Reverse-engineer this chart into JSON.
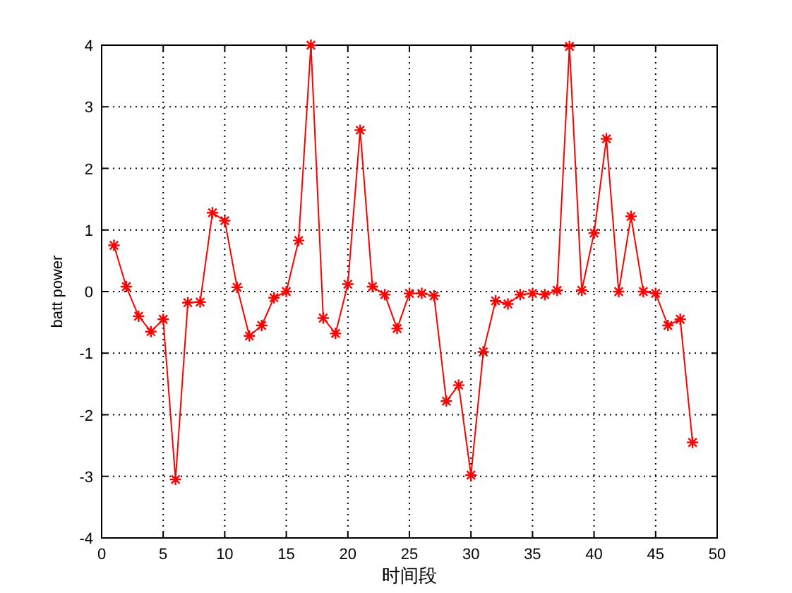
{
  "chart_data": {
    "type": "line",
    "xlabel": "时间段",
    "ylabel": "batt power",
    "x": [
      1,
      2,
      3,
      4,
      5,
      6,
      7,
      8,
      9,
      10,
      11,
      12,
      13,
      14,
      15,
      16,
      17,
      18,
      19,
      20,
      21,
      22,
      23,
      24,
      25,
      26,
      27,
      28,
      29,
      30,
      31,
      32,
      33,
      34,
      35,
      36,
      37,
      38,
      39,
      40,
      41,
      42,
      43,
      44,
      45,
      46,
      47,
      48
    ],
    "series": [
      {
        "color": "#ff0000",
        "values": [
          0.75,
          0.08,
          -0.4,
          -0.65,
          -0.45,
          -3.05,
          -0.18,
          -0.17,
          1.28,
          1.15,
          0.07,
          -0.72,
          -0.55,
          -0.1,
          0,
          0.83,
          4,
          -0.43,
          -0.68,
          0.12,
          2.62,
          0.08,
          -0.05,
          -0.6,
          -0.03,
          -0.03,
          -0.07,
          -1.78,
          -1.52,
          -2.98,
          -0.98,
          -0.15,
          -0.2,
          -0.05,
          -0.03,
          -0.05,
          0.02,
          3.98,
          0.02,
          0.95,
          2.48,
          0,
          1.22,
          0,
          -0.03,
          -0.55,
          -0.45,
          -2.45
        ]
      }
    ],
    "xlim": [
      0,
      50
    ],
    "xticks": [
      0,
      5,
      10,
      15,
      20,
      25,
      30,
      35,
      40,
      45,
      50
    ],
    "ylim": [
      -4,
      4
    ],
    "yticks": [
      -4,
      -3,
      -2,
      -1,
      0,
      1,
      2,
      3,
      4
    ],
    "grid": true,
    "marker": "cross",
    "line_style": "solid"
  }
}
